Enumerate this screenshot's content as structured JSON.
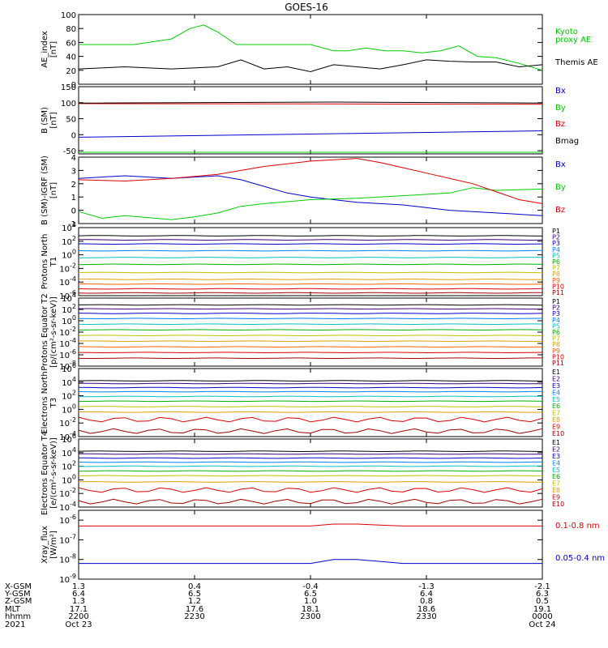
{
  "title": "GOES-16",
  "colors": {
    "ae": "#00cc00",
    "themis": "#000000",
    "bx": "#0000cc",
    "by": "#00cc00",
    "bz": "#dd0000",
    "bmag": "#000000",
    "xray_long": "#dd0000",
    "xray_short": "#0000cc"
  },
  "chart_data": [
    {
      "type": "line",
      "ylabel": "AE_index [nT]",
      "ylim": [
        0,
        100
      ],
      "yticks": [
        "0",
        "20",
        "40",
        "60",
        "80",
        "100"
      ],
      "series": [
        {
          "name": "Kyoto proxy AE",
          "color": "#00cc00",
          "x": [
            0,
            0.12,
            0.2,
            0.24,
            0.27,
            0.3,
            0.34,
            0.45,
            0.5,
            0.55,
            0.58,
            0.62,
            0.66,
            0.7,
            0.74,
            0.78,
            0.82,
            0.86,
            0.9,
            0.95,
            1
          ],
          "y": [
            57,
            57,
            65,
            80,
            85,
            75,
            57,
            57,
            57,
            48,
            48,
            52,
            48,
            48,
            45,
            48,
            55,
            40,
            38,
            30,
            20
          ]
        },
        {
          "name": "Themis AE",
          "color": "#000000",
          "x": [
            0,
            0.1,
            0.2,
            0.3,
            0.35,
            0.4,
            0.45,
            0.5,
            0.55,
            0.6,
            0.65,
            0.7,
            0.75,
            0.8,
            0.85,
            0.9,
            0.95,
            1
          ],
          "y": [
            22,
            25,
            22,
            25,
            35,
            22,
            25,
            18,
            28,
            25,
            22,
            28,
            35,
            33,
            32,
            32,
            25,
            28
          ]
        }
      ]
    },
    {
      "type": "line",
      "ylabel": "B (SM) [nT]",
      "ylim": [
        -60,
        150
      ],
      "yticks": [
        "-50",
        "0",
        "50",
        "100",
        "150"
      ],
      "series": [
        {
          "name": "Bx",
          "color": "#0000cc",
          "x": [
            0,
            1
          ],
          "y": [
            -8,
            12
          ]
        },
        {
          "name": "By",
          "color": "#00cc00",
          "x": [
            0,
            1
          ],
          "y": [
            -55,
            -55
          ]
        },
        {
          "name": "Bz",
          "color": "#dd0000",
          "x": [
            0,
            1
          ],
          "y": [
            97,
            95
          ]
        },
        {
          "name": "Bmag",
          "color": "#000000",
          "x": [
            0,
            0.55,
            1
          ],
          "y": [
            99,
            102,
            99
          ]
        }
      ]
    },
    {
      "type": "line",
      "ylabel": "B (SM)-IGRF (SM) [nT]",
      "ylim": [
        -1,
        4
      ],
      "yticks": [
        "-1",
        "0",
        "1",
        "2",
        "3",
        "4"
      ],
      "series": [
        {
          "name": "Bx",
          "color": "#0000cc",
          "x": [
            0,
            0.1,
            0.2,
            0.3,
            0.35,
            0.4,
            0.45,
            0.5,
            0.6,
            0.7,
            0.8,
            0.9,
            1
          ],
          "y": [
            2.4,
            2.6,
            2.4,
            2.6,
            2.3,
            1.8,
            1.3,
            1.0,
            0.6,
            0.4,
            0.0,
            -0.2,
            -0.4
          ]
        },
        {
          "name": "By",
          "color": "#00cc00",
          "x": [
            0,
            0.05,
            0.1,
            0.2,
            0.25,
            0.3,
            0.35,
            0.4,
            0.5,
            0.6,
            0.7,
            0.8,
            0.85,
            0.9,
            1
          ],
          "y": [
            -0.1,
            -0.6,
            -0.4,
            -0.7,
            -0.5,
            -0.2,
            0.3,
            0.5,
            0.8,
            0.9,
            1.1,
            1.3,
            1.7,
            1.5,
            1.6
          ]
        },
        {
          "name": "Bz",
          "color": "#dd0000",
          "x": [
            0,
            0.1,
            0.2,
            0.3,
            0.35,
            0.4,
            0.45,
            0.5,
            0.55,
            0.6,
            0.65,
            0.7,
            0.75,
            0.8,
            0.85,
            0.9,
            0.95,
            1
          ],
          "y": [
            2.3,
            2.2,
            2.4,
            2.7,
            3.0,
            3.3,
            3.5,
            3.7,
            3.8,
            3.9,
            3.6,
            3.2,
            2.8,
            2.4,
            2.0,
            1.4,
            0.8,
            0.5
          ]
        }
      ]
    },
    {
      "type": "line",
      "ylabel": "Protons North T1",
      "yticks": [
        "10^-6",
        "10^-4",
        "10^-2",
        "10^0",
        "10^2",
        "10^4"
      ],
      "ylim_log": [
        -6,
        4
      ],
      "series": [
        {
          "name": "P1",
          "color": "#000000",
          "y": 2.8
        },
        {
          "name": "P2",
          "color": "#400080",
          "y": 2.2
        },
        {
          "name": "P3",
          "color": "#0000cc",
          "y": 1.6
        },
        {
          "name": "P4",
          "color": "#0080ff",
          "y": 0.6
        },
        {
          "name": "P5",
          "color": "#00c0c0",
          "y": -0.4
        },
        {
          "name": "P6",
          "color": "#00b000",
          "y": -1.4
        },
        {
          "name": "P7",
          "color": "#c0c000",
          "y": -2.6
        },
        {
          "name": "P8",
          "color": "#e0a000",
          "y": -3.6
        },
        {
          "name": "P9",
          "color": "#ff6000",
          "y": -4.3
        },
        {
          "name": "P10",
          "color": "#dd0000",
          "y": -5.0
        },
        {
          "name": "P11",
          "color": "#a00000",
          "y": -5.6
        }
      ]
    },
    {
      "type": "line",
      "ylabel": "Protons Equator T2 [p/(cm²-s-sr-keV)]",
      "yticks": [
        "10^-8",
        "10^-6",
        "10^-4",
        "10^-2",
        "10^0",
        "10^2",
        "10^4"
      ],
      "ylim_log": [
        -8,
        4
      ],
      "series": [
        {
          "name": "P1",
          "color": "#000000",
          "y": 2.8
        },
        {
          "name": "P2",
          "color": "#400080",
          "y": 2.1
        },
        {
          "name": "P3",
          "color": "#0000cc",
          "y": 1.3
        },
        {
          "name": "P4",
          "color": "#0080ff",
          "y": 0.4
        },
        {
          "name": "P5",
          "color": "#00c0c0",
          "y": -0.6
        },
        {
          "name": "P6",
          "color": "#00b000",
          "y": -1.6
        },
        {
          "name": "P7",
          "color": "#c0c000",
          "y": -2.6
        },
        {
          "name": "P8",
          "color": "#e0a000",
          "y": -3.6
        },
        {
          "name": "P9",
          "color": "#ff6000",
          "y": -4.6
        },
        {
          "name": "P10",
          "color": "#dd0000",
          "y": -5.6
        },
        {
          "name": "P11",
          "color": "#a00000",
          "y": -6.6
        }
      ]
    },
    {
      "type": "line",
      "ylabel": "Electrons North T3",
      "yticks": [
        "10^-4",
        "10^-2",
        "10^0",
        "10^2",
        "10^4",
        "10^6"
      ],
      "ylim_log": [
        -4,
        6
      ],
      "series": [
        {
          "name": "E1",
          "color": "#000000",
          "y": 4.2
        },
        {
          "name": "E2",
          "color": "#400080",
          "y": 3.8
        },
        {
          "name": "E3",
          "color": "#0000cc",
          "y": 3.2
        },
        {
          "name": "E4",
          "color": "#0080ff",
          "y": 2.6
        },
        {
          "name": "E5",
          "color": "#00c0c0",
          "y": 1.9
        },
        {
          "name": "E6",
          "color": "#00b000",
          "y": 1.2
        },
        {
          "name": "E7",
          "color": "#c0c000",
          "y": 0.4
        },
        {
          "name": "E8",
          "color": "#e0a000",
          "y": -0.4
        },
        {
          "name": "E9",
          "color": "#dd0000",
          "y": -1.5
        },
        {
          "name": "E10",
          "color": "#a00000",
          "y": -3.2
        }
      ]
    },
    {
      "type": "line",
      "ylabel": "Electrons Equator T4 [e/(cm²-s-sr-keV)]",
      "yticks": [
        "10^-4",
        "10^-2",
        "10^0",
        "10^2",
        "10^4",
        "10^6"
      ],
      "ylim_log": [
        -4,
        6
      ],
      "series": [
        {
          "name": "E1",
          "color": "#000000",
          "y": 4.2
        },
        {
          "name": "E2",
          "color": "#400080",
          "y": 3.8
        },
        {
          "name": "E3",
          "color": "#0000cc",
          "y": 3.2
        },
        {
          "name": "E4",
          "color": "#0080ff",
          "y": 2.6
        },
        {
          "name": "E5",
          "color": "#00c0c0",
          "y": 2.0
        },
        {
          "name": "E6",
          "color": "#00b000",
          "y": 1.3
        },
        {
          "name": "E7",
          "color": "#c0c000",
          "y": 0.6
        },
        {
          "name": "E8",
          "color": "#e0a000",
          "y": -0.3
        },
        {
          "name": "E9",
          "color": "#dd0000",
          "y": -1.5
        },
        {
          "name": "E10",
          "color": "#a00000",
          "y": -3.2
        }
      ]
    },
    {
      "type": "line",
      "ylabel": "Xray_flux [W/m²]",
      "yticks": [
        "10^-9",
        "10^-8",
        "10^-7",
        "10^-6"
      ],
      "ylim_log": [
        -9,
        -5.5
      ],
      "series": [
        {
          "name": "0.1-0.8 nm",
          "color": "#dd0000",
          "x": [
            0,
            0.2,
            0.4,
            0.5,
            0.55,
            0.6,
            0.65,
            0.7,
            0.8,
            1
          ],
          "y": [
            -6.3,
            -6.3,
            -6.3,
            -6.3,
            -6.2,
            -6.2,
            -6.25,
            -6.3,
            -6.3,
            -6.3
          ]
        },
        {
          "name": "0.05-0.4 nm",
          "color": "#0000cc",
          "x": [
            0,
            0.2,
            0.4,
            0.5,
            0.55,
            0.6,
            0.65,
            0.7,
            0.8,
            1
          ],
          "y": [
            -8.2,
            -8.2,
            -8.2,
            -8.2,
            -8.0,
            -8.0,
            -8.1,
            -8.2,
            -8.2,
            -8.2
          ]
        }
      ]
    }
  ],
  "panel_labels": [
    [
      "Kyoto",
      "proxy AE",
      "Themis AE"
    ],
    [
      "Bx",
      "By",
      "Bz",
      "Bmag"
    ],
    [
      "Bx",
      "By",
      "Bz"
    ]
  ],
  "xray_labels": [
    "0.1-0.8 nm",
    "0.05-0.4 nm"
  ],
  "footer": {
    "rows": [
      "X-GSM",
      "Y-GSM",
      "Z-GSM",
      "MLT",
      "hhmm",
      "2021"
    ],
    "cols": [
      [
        "1.3",
        "6.4",
        "1.3",
        "17.1",
        "2200",
        "Oct 23"
      ],
      [
        "0.4",
        "6.5",
        "1.2",
        "17.6",
        "2230",
        ""
      ],
      [
        "-0.4",
        "6.5",
        "1.0",
        "18.1",
        "2300",
        ""
      ],
      [
        "-1.3",
        "6.4",
        "0.8",
        "18.6",
        "2330",
        ""
      ],
      [
        "-2.1",
        "6.3",
        "0.5",
        "19.1",
        "0000",
        "Oct 24"
      ]
    ]
  }
}
